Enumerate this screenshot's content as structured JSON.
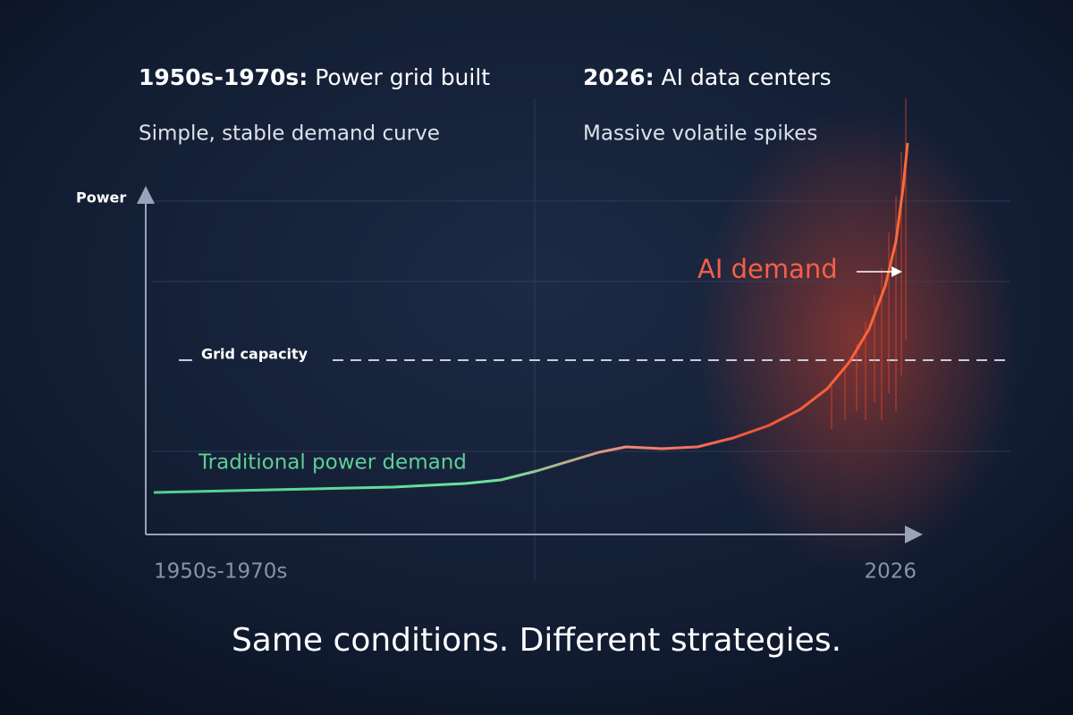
{
  "left_panel": {
    "era": "1950s-1970s:",
    "title": "Power grid built",
    "subtitle": "Simple, stable demand curve"
  },
  "right_panel": {
    "era": "2026:",
    "title": "AI data centers",
    "subtitle": "Massive volatile spikes"
  },
  "axis": {
    "y_label": "Power",
    "x_start": "1950s-1970s",
    "x_end": "2026"
  },
  "annotations": {
    "capacity": "Grid capacity",
    "ai": "AI demand",
    "traditional": "Traditional power demand"
  },
  "footer": "Same conditions. Different strategies."
}
